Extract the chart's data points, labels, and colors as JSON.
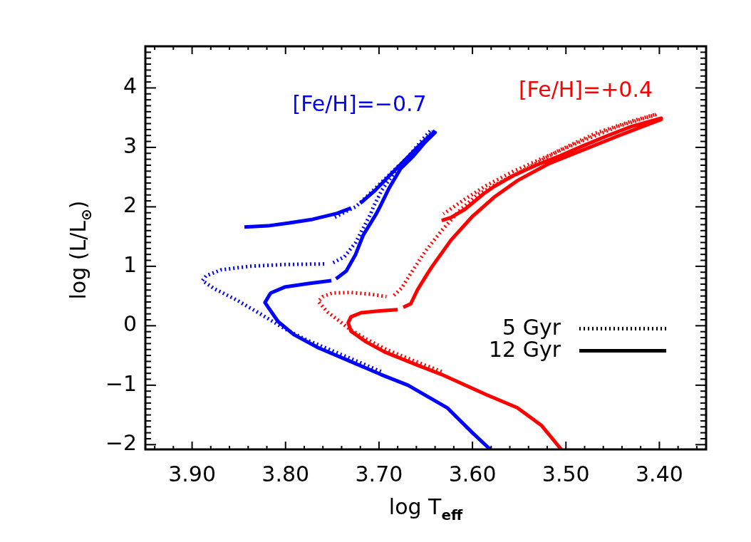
{
  "chart_data": {
    "type": "line",
    "xlabel": "log T$_{eff}$",
    "ylabel": "log (L/L$_{⊙}$)",
    "xlim": [
      3.95,
      3.35
    ],
    "xticks": [
      {
        "value": 3.94,
        "label": null
      },
      {
        "value": 3.92,
        "label": null
      },
      {
        "value": 3.9,
        "label": "3.90"
      },
      {
        "value": 3.88,
        "label": null
      },
      {
        "value": 3.86,
        "label": null
      },
      {
        "value": 3.84,
        "label": null
      },
      {
        "value": 3.82,
        "label": null
      },
      {
        "value": 3.8,
        "label": "3.80"
      },
      {
        "value": 3.78,
        "label": null
      },
      {
        "value": 3.76,
        "label": null
      },
      {
        "value": 3.74,
        "label": null
      },
      {
        "value": 3.72,
        "label": null
      },
      {
        "value": 3.7,
        "label": "3.70"
      },
      {
        "value": 3.68,
        "label": null
      },
      {
        "value": 3.66,
        "label": null
      },
      {
        "value": 3.64,
        "label": null
      },
      {
        "value": 3.62,
        "label": null
      },
      {
        "value": 3.6,
        "label": "3.60"
      },
      {
        "value": 3.58,
        "label": null
      },
      {
        "value": 3.56,
        "label": null
      },
      {
        "value": 3.54,
        "label": null
      },
      {
        "value": 3.52,
        "label": null
      },
      {
        "value": 3.5,
        "label": "3.50"
      },
      {
        "value": 3.48,
        "label": null
      },
      {
        "value": 3.46,
        "label": null
      },
      {
        "value": 3.44,
        "label": null
      },
      {
        "value": 3.42,
        "label": null
      },
      {
        "value": 3.4,
        "label": "3.40"
      },
      {
        "value": 3.38,
        "label": null
      },
      {
        "value": 3.36,
        "label": null
      }
    ],
    "ylim": [
      -2.08,
      4.7
    ],
    "yticks": [
      {
        "value": -2,
        "label": "−2"
      },
      {
        "value": -1.9,
        "label": null
      },
      {
        "value": -1.8,
        "label": null
      },
      {
        "value": -1.7,
        "label": null
      },
      {
        "value": -1.6,
        "label": null
      },
      {
        "value": -1.5,
        "label": null
      },
      {
        "value": -1.4,
        "label": null
      },
      {
        "value": -1.3,
        "label": null
      },
      {
        "value": -1.2,
        "label": null
      },
      {
        "value": -1.1,
        "label": null
      },
      {
        "value": -1,
        "label": "−1"
      },
      {
        "value": -0.9,
        "label": null
      },
      {
        "value": -0.8,
        "label": null
      },
      {
        "value": -0.7,
        "label": null
      },
      {
        "value": -0.6,
        "label": null
      },
      {
        "value": -0.5,
        "label": null
      },
      {
        "value": -0.4,
        "label": null
      },
      {
        "value": -0.3,
        "label": null
      },
      {
        "value": -0.2,
        "label": null
      },
      {
        "value": -0.1,
        "label": null
      },
      0,
      {
        "value": 0.1,
        "label": null
      },
      {
        "value": 0.2,
        "label": null
      },
      {
        "value": 0.3,
        "label": null
      },
      {
        "value": 0.4,
        "label": null
      },
      {
        "value": 0.5,
        "label": null
      },
      {
        "value": 0.6,
        "label": null
      },
      {
        "value": 0.7,
        "label": null
      },
      {
        "value": 0.8,
        "label": null
      },
      {
        "value": 0.9,
        "label": null
      },
      1,
      {
        "value": 1.1,
        "label": null
      },
      {
        "value": 1.2,
        "label": null
      },
      {
        "value": 1.3,
        "label": null
      },
      {
        "value": 1.4,
        "label": null
      },
      {
        "value": 1.5,
        "label": null
      },
      {
        "value": 1.6,
        "label": null
      },
      {
        "value": 1.7,
        "label": null
      },
      {
        "value": 1.8,
        "label": null
      },
      {
        "value": 1.9,
        "label": null
      },
      2,
      {
        "value": 2.1,
        "label": null
      },
      {
        "value": 2.2,
        "label": null
      },
      {
        "value": 2.3,
        "label": null
      },
      {
        "value": 2.4,
        "label": null
      },
      {
        "value": 2.5,
        "label": null
      },
      {
        "value": 2.6,
        "label": null
      },
      {
        "value": 2.7,
        "label": null
      },
      {
        "value": 2.8,
        "label": null
      },
      {
        "value": 2.9,
        "label": null
      },
      3,
      {
        "value": 3.1,
        "label": null
      },
      {
        "value": 3.2,
        "label": null
      },
      {
        "value": 3.3,
        "label": null
      },
      {
        "value": 3.4,
        "label": null
      },
      {
        "value": 3.5,
        "label": null
      },
      {
        "value": 3.6,
        "label": null
      },
      {
        "value": 3.7,
        "label": null
      },
      {
        "value": 3.8,
        "label": null
      },
      {
        "value": 3.9,
        "label": null
      },
      4,
      {
        "value": 4.1,
        "label": null
      },
      {
        "value": 4.2,
        "label": null
      },
      {
        "value": 4.3,
        "label": null
      },
      {
        "value": 4.4,
        "label": null
      },
      {
        "value": 4.5,
        "label": null
      },
      {
        "value": 4.6,
        "label": null
      }
    ],
    "annotations": [
      "5 Gyr",
      "12 Gyr"
    ],
    "series": [
      {
        "color": "#0000ff",
        "line_style": "dotted",
        "x": [
          3.698,
          3.732,
          3.765,
          3.78,
          3.801,
          3.826,
          3.852,
          3.877,
          3.889,
          3.885,
          3.869,
          3.839,
          3.801,
          3.758,
          3.754,
          3.749,
          3.737,
          3.725,
          3.717,
          3.709,
          3.706,
          3.697,
          3.684,
          3.671,
          3.656,
          3.642,
          3.645,
          3.654,
          3.669,
          3.689,
          3.71,
          3.725,
          3.738,
          3.749
        ],
        "values": [
          -0.77,
          -0.54,
          -0.32,
          -0.22,
          -0.05,
          0.19,
          0.43,
          0.63,
          0.76,
          0.84,
          0.94,
          1.0,
          1.03,
          1.04,
          null,
          1.06,
          1.16,
          1.4,
          1.64,
          1.88,
          2.0,
          2.28,
          2.56,
          2.8,
          3.04,
          3.27,
          3.28,
          3.12,
          2.84,
          2.54,
          2.22,
          2.0,
          1.9,
          1.81
        ]
      },
      {
        "name": "[Fe/H]=−0.7",
        "color": "#0000ff",
        "line_style": "solid",
        "x": [
          3.581,
          3.6,
          3.627,
          3.669,
          3.698,
          3.732,
          3.765,
          3.791,
          3.808,
          3.822,
          3.816,
          3.801,
          3.775,
          3.751,
          3.748,
          3.746,
          3.735,
          3.725,
          3.717,
          3.703,
          3.699,
          3.689,
          3.677,
          3.664,
          3.651,
          3.64,
          3.642,
          3.659,
          3.674,
          3.689,
          3.704,
          3.72,
          3.725,
          3.73,
          3.745,
          3.771,
          3.796,
          3.819,
          3.844
        ],
        "values": [
          -2.08,
          -1.8,
          -1.38,
          -1.0,
          -0.82,
          -0.59,
          -0.37,
          -0.15,
          0.07,
          0.39,
          0.55,
          0.65,
          0.71,
          0.76,
          null,
          0.79,
          0.92,
          1.2,
          1.52,
          1.88,
          2.0,
          2.32,
          2.64,
          2.84,
          3.08,
          3.25,
          3.24,
          3.0,
          2.76,
          2.52,
          2.28,
          2.06,
          null,
          1.98,
          1.89,
          1.79,
          1.73,
          1.68,
          1.66
        ]
      },
      {
        "color": "#ff0000",
        "line_style": "dotted",
        "x": [
          3.633,
          3.661,
          3.692,
          3.714,
          3.732,
          3.745,
          3.755,
          3.765,
          3.76,
          3.75,
          3.73,
          3.709,
          3.692,
          3.688,
          3.684,
          3.676,
          3.666,
          3.651,
          3.633,
          3.615,
          3.595,
          3.577,
          3.547,
          3.506,
          3.468,
          3.43,
          3.403,
          3.404,
          3.443,
          3.481,
          3.519,
          3.557,
          3.585,
          3.608,
          3.631
        ],
        "values": [
          -0.77,
          -0.6,
          -0.4,
          -0.22,
          -0.05,
          0.11,
          0.23,
          0.41,
          0.49,
          0.55,
          0.56,
          0.53,
          0.49,
          null,
          0.51,
          0.63,
          0.88,
          1.24,
          1.6,
          1.92,
          2.2,
          2.36,
          2.6,
          2.96,
          3.24,
          3.44,
          3.56,
          3.55,
          3.36,
          3.12,
          2.86,
          2.59,
          2.36,
          2.13,
          1.88
        ]
      },
      {
        "name": "[Fe/H]=+0.4",
        "color": "#ff0000",
        "line_style": "solid",
        "x": [
          3.505,
          3.526,
          3.552,
          3.585,
          3.633,
          3.661,
          3.694,
          3.714,
          3.73,
          3.733,
          3.73,
          3.719,
          3.699,
          3.68,
          3.677,
          3.674,
          3.666,
          3.659,
          3.648,
          3.643,
          3.623,
          3.6,
          3.577,
          3.552,
          3.519,
          3.481,
          3.443,
          3.398,
          3.398,
          3.43,
          3.455,
          3.481,
          3.506,
          3.532,
          3.557,
          3.577,
          3.588,
          3.608,
          3.623,
          3.633
        ],
        "values": [
          -2.08,
          -1.68,
          -1.38,
          -1.16,
          -0.82,
          -0.65,
          -0.44,
          -0.27,
          -0.09,
          0.05,
          0.15,
          0.22,
          0.25,
          0.27,
          null,
          0.31,
          0.37,
          0.6,
          0.88,
          1.0,
          1.44,
          1.84,
          2.16,
          2.44,
          2.72,
          2.96,
          3.2,
          3.47,
          3.49,
          3.35,
          3.2,
          3.03,
          2.86,
          2.7,
          2.52,
          2.34,
          2.22,
          1.96,
          1.82,
          1.77
        ]
      }
    ]
  }
}
